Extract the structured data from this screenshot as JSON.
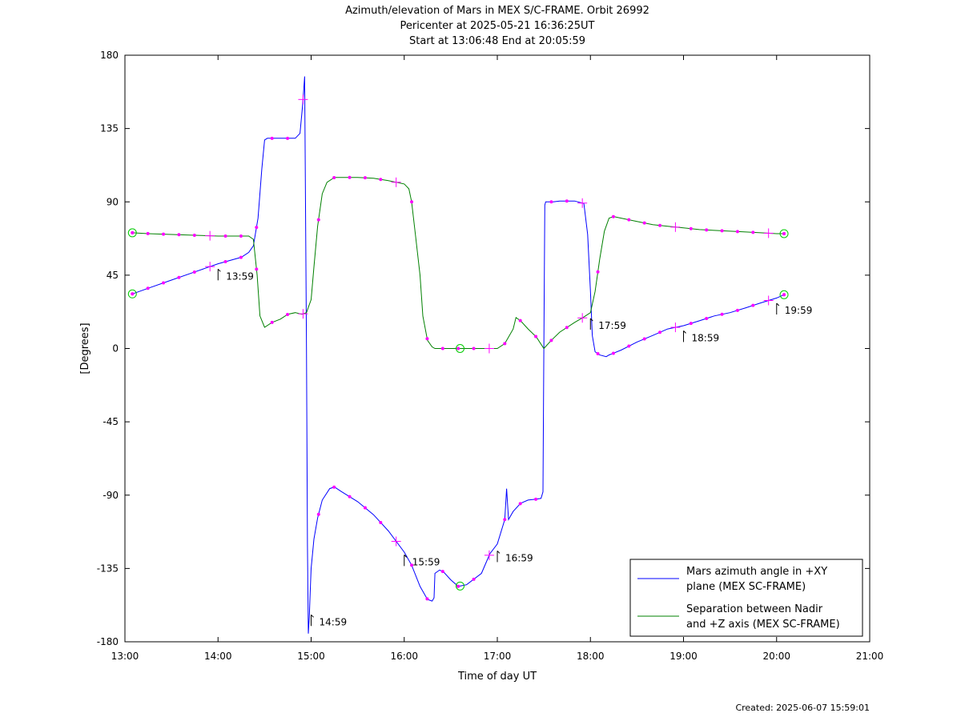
{
  "chart_data": {
    "type": "line",
    "title_lines": [
      "Azimuth/elevation of Mars in MEX S/C-FRAME.  Orbit 26992",
      "Pericenter at 2025-05-21 16:36:25UT",
      "Start at 13:06:48 End at 20:05:59"
    ],
    "xlabel": "Time of day UT",
    "ylabel": "[Degrees]",
    "xlim": [
      13.0,
      21.0
    ],
    "ylim": [
      -180,
      180
    ],
    "x_ticks": [
      13,
      14,
      15,
      16,
      17,
      18,
      19,
      20,
      21
    ],
    "x_tick_labels": [
      "13:00",
      "14:00",
      "15:00",
      "16:00",
      "17:00",
      "18:00",
      "19:00",
      "20:00",
      "21:00"
    ],
    "y_ticks": [
      180,
      135,
      90,
      45,
      0,
      -45,
      -90,
      -135,
      -180
    ],
    "y_tick_labels": [
      "180",
      "135",
      "90",
      "45",
      "0",
      "-45",
      "-90",
      "-135",
      "-180"
    ],
    "grid": false,
    "legend_position": "bottom-right",
    "series": [
      {
        "name": "Mars azimuth angle in +XY plane (MEX SC-FRAME)",
        "legend_lines": [
          "Mars azimuth angle in +XY",
          "plane (MEX SC-FRAME)"
        ],
        "color": "#0000ff",
        "x": [
          13.08,
          13.25,
          13.5,
          13.75,
          14.0,
          14.25,
          14.33,
          14.38,
          14.43,
          14.47,
          14.5,
          14.53,
          14.65,
          14.83,
          14.88,
          14.91,
          14.93,
          14.95,
          14.96,
          14.97,
          14.98,
          14.99,
          15.0,
          15.03,
          15.07,
          15.12,
          15.2,
          15.25,
          15.33,
          15.5,
          15.67,
          15.83,
          16.0,
          16.08,
          16.17,
          16.25,
          16.3,
          16.32,
          16.33,
          16.38,
          16.42,
          16.5,
          16.58,
          16.67,
          16.83,
          16.92,
          17.0,
          17.08,
          17.1,
          17.12,
          17.17,
          17.25,
          17.33,
          17.42,
          17.47,
          17.49,
          17.5,
          17.51,
          17.52,
          17.53,
          17.6,
          17.67,
          17.83,
          17.93,
          17.97,
          18.0,
          18.02,
          18.05,
          18.1,
          18.17,
          18.2,
          18.33,
          18.5,
          18.67,
          18.83,
          19.0,
          19.17,
          19.33,
          19.5,
          19.67,
          19.83,
          20.0,
          20.08
        ],
        "y": [
          33.5,
          37,
          42,
          47,
          52,
          56,
          59,
          63,
          80,
          110,
          128,
          129,
          129,
          129,
          132,
          150,
          167,
          0,
          -120,
          -175,
          -165,
          -150,
          -135,
          -117,
          -104,
          -93,
          -86,
          -85,
          -88,
          -94,
          -102,
          -112,
          -125,
          -133,
          -146,
          -154,
          -155,
          -153,
          -138,
          -136,
          -137,
          -142,
          -146,
          -145,
          -138,
          -126,
          -120,
          -105,
          -86,
          -105,
          -100,
          -95,
          -93,
          -92.5,
          -92,
          -88,
          0,
          88,
          90,
          90,
          90,
          90.5,
          90.5,
          89,
          70,
          35,
          8,
          -2,
          -4,
          -5,
          -4,
          -1,
          4,
          8,
          12,
          14,
          17,
          20,
          22,
          25,
          28,
          31,
          33
        ]
      },
      {
        "name": "Separation between Nadir and +Z axis (MEX SC-FRAME)",
        "legend_lines": [
          "Separation between Nadir",
          "and +Z axis (MEX SC-FRAME)"
        ],
        "color": "#008000",
        "x": [
          13.08,
          13.25,
          13.5,
          13.75,
          14.0,
          14.25,
          14.33,
          14.38,
          14.42,
          14.45,
          14.5,
          14.58,
          14.67,
          14.75,
          14.83,
          14.9,
          14.95,
          15.0,
          15.03,
          15.07,
          15.12,
          15.17,
          15.25,
          15.33,
          15.5,
          15.67,
          15.83,
          16.0,
          16.05,
          16.08,
          16.12,
          16.17,
          16.2,
          16.25,
          16.3,
          16.33,
          16.5,
          16.67,
          16.83,
          17.0,
          17.08,
          17.17,
          17.2,
          17.25,
          17.33,
          17.42,
          17.5,
          17.58,
          17.67,
          17.83,
          17.92,
          18.0,
          18.05,
          18.1,
          18.15,
          18.2,
          18.25,
          18.33,
          18.5,
          18.67,
          18.83,
          19.0,
          19.17,
          19.33,
          19.5,
          19.67,
          19.83,
          20.0,
          20.08
        ],
        "y": [
          71,
          70.5,
          70,
          69.5,
          69,
          69,
          69,
          67,
          45,
          20,
          13,
          16,
          18,
          21,
          22,
          21,
          22,
          30,
          50,
          75,
          95,
          102,
          105,
          105,
          105,
          104.5,
          103,
          101,
          98,
          90,
          70,
          45,
          20,
          5,
          1,
          0,
          0,
          0,
          0,
          0,
          3,
          12,
          19,
          17,
          12,
          7,
          0,
          5,
          10,
          16,
          19,
          22,
          35,
          55,
          72,
          80,
          81,
          80,
          78,
          76,
          75,
          74,
          73,
          72.5,
          72,
          71.5,
          71,
          70.5,
          70.5
        ]
      }
    ],
    "annotations": [
      "13:59",
      "14:59",
      "15:59",
      "16:59",
      "17:59",
      "18:59",
      "19:59"
    ],
    "created_label": "Created: 2025-06-07 15:59:01"
  }
}
